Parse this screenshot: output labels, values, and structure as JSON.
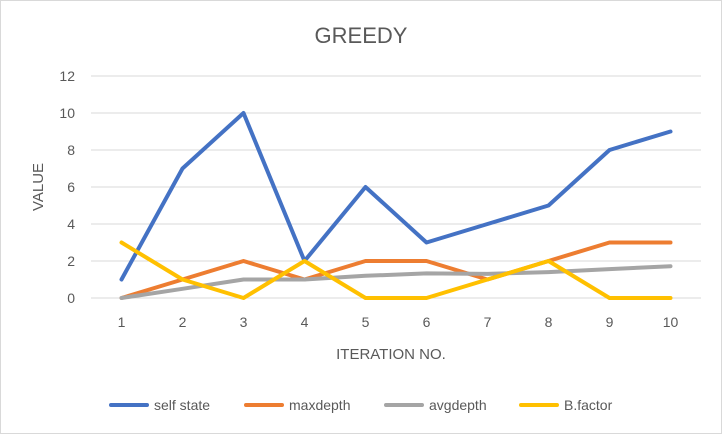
{
  "chart_data": {
    "type": "line",
    "title": "GREEDY",
    "xlabel": "ITERATION NO.",
    "ylabel": "VALUE",
    "categories": [
      "1",
      "2",
      "3",
      "4",
      "5",
      "6",
      "7",
      "8",
      "9",
      "10"
    ],
    "yticks": [
      "0",
      "2",
      "4",
      "6",
      "8",
      "10",
      "12"
    ],
    "ylim": [
      0,
      12
    ],
    "grid": true,
    "legend_position": "bottom",
    "series": [
      {
        "name": "self state",
        "color": "#4472C4",
        "values": [
          1,
          7,
          10,
          2,
          6,
          3,
          4,
          5,
          8,
          9
        ]
      },
      {
        "name": "maxdepth",
        "color": "#ED7D31",
        "values": [
          0,
          1,
          2,
          1,
          2,
          2,
          1,
          2,
          3,
          3
        ]
      },
      {
        "name": "avgdepth",
        "color": "#A5A5A5",
        "values": [
          0,
          0.5,
          1,
          1,
          1.2,
          1.33,
          1.3,
          1.4,
          1.56,
          1.72
        ]
      },
      {
        "name": "B.factor",
        "color": "#FFC000",
        "values": [
          3,
          1,
          0,
          2,
          0,
          0,
          1,
          2,
          0,
          0
        ]
      }
    ]
  }
}
